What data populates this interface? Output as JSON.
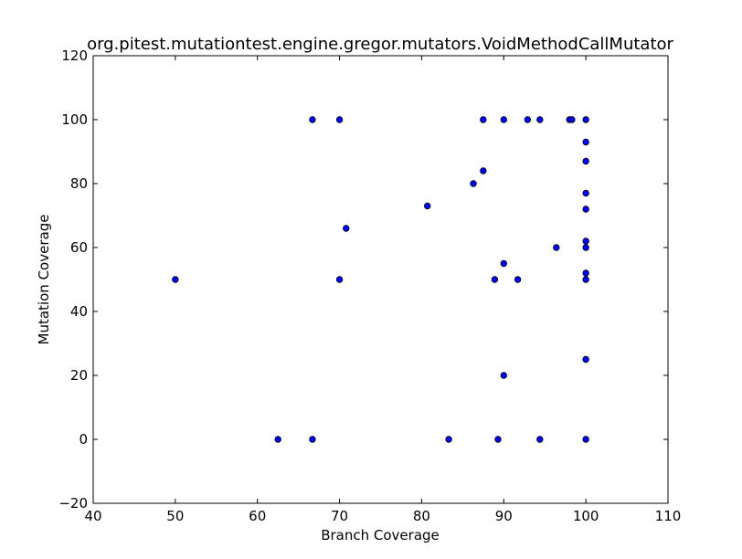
{
  "chart_data": {
    "type": "scatter",
    "title": "org.pitest.mutationtest.engine.gregor.mutators.VoidMethodCallMutator",
    "xlabel": "Branch Coverage",
    "ylabel": "Mutation Coverage",
    "xlim": [
      40,
      110
    ],
    "ylim": [
      -20,
      120
    ],
    "xticks": [
      40,
      50,
      60,
      70,
      80,
      90,
      100,
      110
    ],
    "yticks": [
      -20,
      0,
      20,
      40,
      60,
      80,
      100,
      120
    ],
    "xtick_labels": [
      "40",
      "50",
      "60",
      "70",
      "80",
      "90",
      "100",
      "110"
    ],
    "ytick_labels": [
      "−20",
      "0",
      "20",
      "40",
      "60",
      "80",
      "100",
      "120"
    ],
    "grid": false,
    "marker_color": "#0000ff",
    "marker_edge": "#000000",
    "points": [
      {
        "x": 50,
        "y": 50
      },
      {
        "x": 62.5,
        "y": 0
      },
      {
        "x": 66.7,
        "y": 0
      },
      {
        "x": 66.7,
        "y": 100
      },
      {
        "x": 70,
        "y": 100
      },
      {
        "x": 70,
        "y": 50
      },
      {
        "x": 70.8,
        "y": 66
      },
      {
        "x": 80.7,
        "y": 73
      },
      {
        "x": 83.3,
        "y": 0
      },
      {
        "x": 86.3,
        "y": 80
      },
      {
        "x": 87.5,
        "y": 84
      },
      {
        "x": 87.5,
        "y": 100
      },
      {
        "x": 88.9,
        "y": 50
      },
      {
        "x": 89.3,
        "y": 0
      },
      {
        "x": 90,
        "y": 100
      },
      {
        "x": 90,
        "y": 55
      },
      {
        "x": 90,
        "y": 20
      },
      {
        "x": 91.7,
        "y": 50
      },
      {
        "x": 92.9,
        "y": 100
      },
      {
        "x": 94.4,
        "y": 100
      },
      {
        "x": 94.4,
        "y": 0
      },
      {
        "x": 96.4,
        "y": 60
      },
      {
        "x": 98,
        "y": 100
      },
      {
        "x": 98.3,
        "y": 100
      },
      {
        "x": 100,
        "y": 100
      },
      {
        "x": 100,
        "y": 93
      },
      {
        "x": 100,
        "y": 87
      },
      {
        "x": 100,
        "y": 77
      },
      {
        "x": 100,
        "y": 72
      },
      {
        "x": 100,
        "y": 62
      },
      {
        "x": 100,
        "y": 60
      },
      {
        "x": 100,
        "y": 52
      },
      {
        "x": 100,
        "y": 50
      },
      {
        "x": 100,
        "y": 25
      },
      {
        "x": 100,
        "y": 0
      }
    ]
  }
}
